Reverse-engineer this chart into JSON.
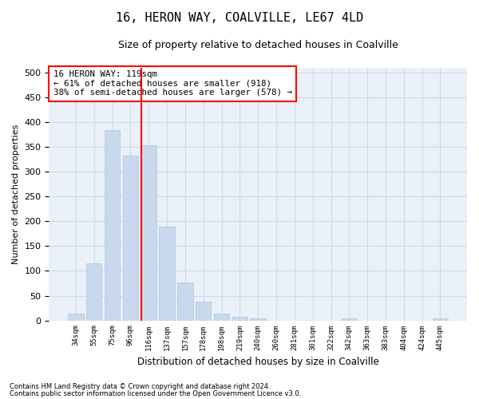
{
  "title": "16, HERON WAY, COALVILLE, LE67 4LD",
  "subtitle": "Size of property relative to detached houses in Coalville",
  "xlabel": "Distribution of detached houses by size in Coalville",
  "ylabel": "Number of detached properties",
  "footer_line1": "Contains HM Land Registry data © Crown copyright and database right 2024.",
  "footer_line2": "Contains public sector information licensed under the Open Government Licence v3.0.",
  "categories": [
    "34sqm",
    "55sqm",
    "75sqm",
    "96sqm",
    "116sqm",
    "137sqm",
    "157sqm",
    "178sqm",
    "198sqm",
    "219sqm",
    "240sqm",
    "260sqm",
    "281sqm",
    "301sqm",
    "322sqm",
    "342sqm",
    "363sqm",
    "383sqm",
    "404sqm",
    "424sqm",
    "445sqm"
  ],
  "values": [
    13,
    115,
    385,
    332,
    353,
    190,
    76,
    38,
    13,
    7,
    4,
    0,
    0,
    0,
    0,
    4,
    0,
    0,
    0,
    0,
    4
  ],
  "bar_color": "#c8d9ee",
  "bar_edge_color": "#b0c4de",
  "grid_color": "#d0d8e8",
  "background_color": "#eaf0f8",
  "vline_color": "red",
  "vline_x_index": 4,
  "annotation_text": "16 HERON WAY: 119sqm\n← 61% of detached houses are smaller (918)\n38% of semi-detached houses are larger (578) →",
  "annotation_box_color": "white",
  "annotation_box_edge": "red",
  "ylim": [
    0,
    510
  ],
  "yticks": [
    0,
    50,
    100,
    150,
    200,
    250,
    300,
    350,
    400,
    450,
    500
  ]
}
